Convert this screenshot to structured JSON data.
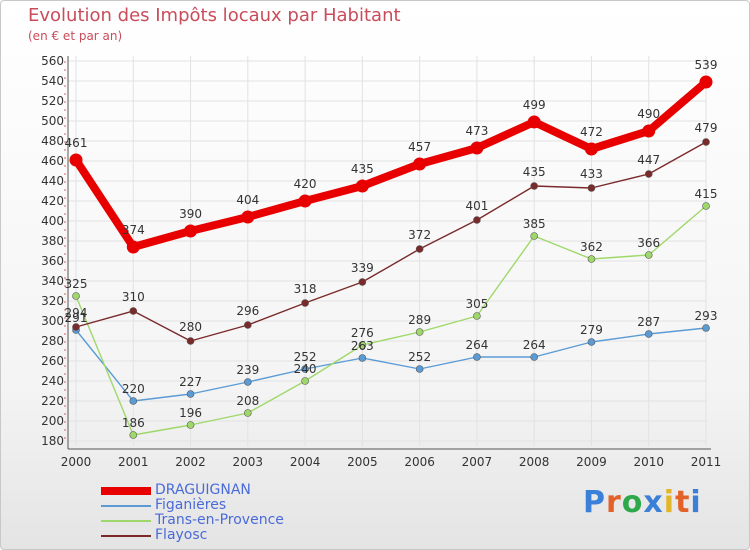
{
  "title": "Evolution des Impôts locaux par Habitant",
  "subtitle": "(en € et par an)",
  "logo": {
    "text": "Proxiti",
    "letter_colors": [
      "#3a7fd8",
      "#e2622a",
      "#2da84a",
      "#3a7fd8",
      "#e2b62a",
      "#e2622a",
      "#3a7fd8"
    ]
  },
  "chart_data": {
    "type": "line",
    "title": "Evolution des Impôts locaux par Habitant",
    "subtitle": "(en € et par an)",
    "xlabel": "",
    "ylabel": "",
    "ylim": [
      180,
      560
    ],
    "ytick_step": 20,
    "yticks": [
      "180",
      "200",
      "220",
      "240",
      "260",
      "280",
      "300",
      "320",
      "340",
      "360",
      "380",
      "400",
      "420",
      "440",
      "460",
      "480",
      "500",
      "520",
      "540",
      "560"
    ],
    "x": [
      "2000",
      "2001",
      "2002",
      "2003",
      "2004",
      "2005",
      "2006",
      "2007",
      "2008",
      "2009",
      "2010",
      "2011"
    ],
    "grid": true,
    "legend": "bottom-left",
    "series": [
      {
        "name": "DRAGUIGNAN",
        "color": "#e80000",
        "values": [
          461,
          374,
          390,
          404,
          420,
          435,
          457,
          473,
          499,
          472,
          490,
          539
        ],
        "labels": [
          "461",
          "374",
          "390",
          "404",
          "420",
          "435",
          "457",
          "473",
          "499",
          "472",
          "490",
          "539"
        ]
      },
      {
        "name": "Figanières",
        "color": "#5b9bd5",
        "values": [
          291,
          220,
          227,
          239,
          252,
          263,
          252,
          264,
          264,
          279,
          287,
          293
        ],
        "labels": [
          "291",
          "220",
          "227",
          "239",
          "252",
          "263",
          "252",
          "264",
          "264",
          "279",
          "287",
          "293"
        ]
      },
      {
        "name": "Trans-en-Provence",
        "color": "#9fd86a",
        "values": [
          325,
          186,
          196,
          208,
          240,
          276,
          289,
          305,
          385,
          362,
          366,
          415
        ],
        "labels": [
          "325",
          "186",
          "196",
          "208",
          "240",
          "276",
          "289",
          "305",
          "385",
          "362",
          "366",
          "415"
        ]
      },
      {
        "name": "Flayosc",
        "color": "#7a2a2a",
        "values": [
          294,
          310,
          280,
          296,
          318,
          339,
          372,
          401,
          435,
          433,
          447,
          479
        ],
        "labels": [
          "294",
          "310",
          "280",
          "296",
          "318",
          "339",
          "372",
          "401",
          "435",
          "433",
          "447",
          "479"
        ]
      }
    ]
  }
}
